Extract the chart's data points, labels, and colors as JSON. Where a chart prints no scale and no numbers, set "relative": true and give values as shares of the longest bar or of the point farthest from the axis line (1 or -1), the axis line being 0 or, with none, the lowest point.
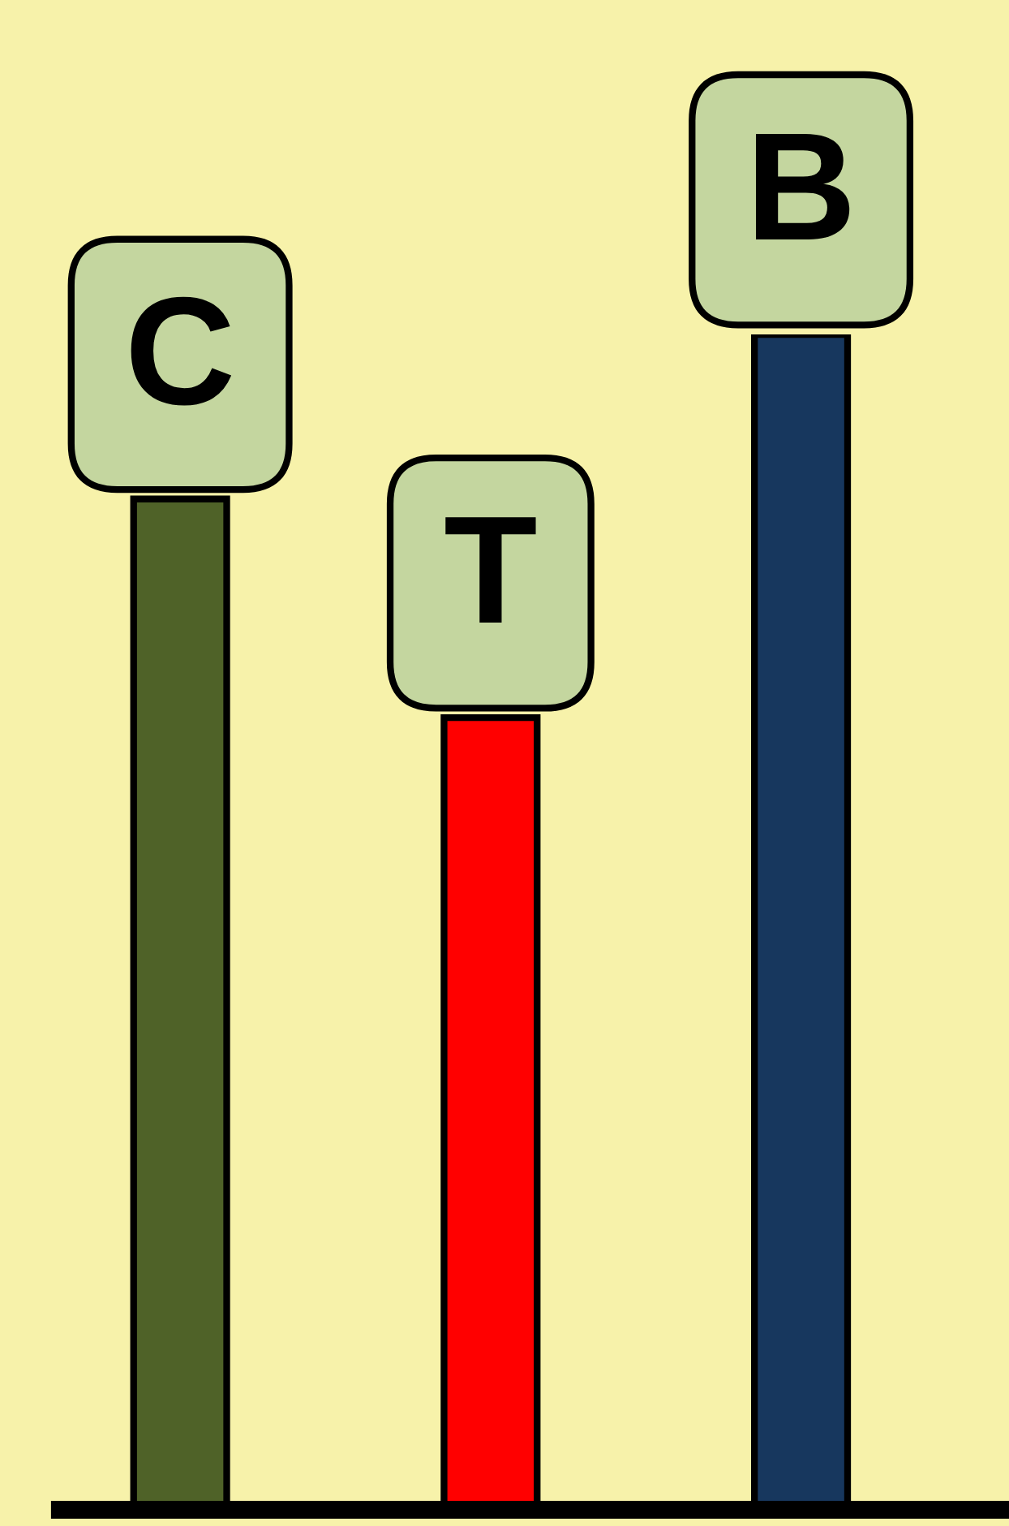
{
  "chart_data": {
    "type": "bar",
    "relative": true,
    "categories": [
      "C",
      "T",
      "B"
    ],
    "values": [
      0.86,
      0.674,
      1
    ],
    "colors": [
      "#4f6228",
      "#ff0000",
      "#17375e"
    ],
    "legend": false
  }
}
